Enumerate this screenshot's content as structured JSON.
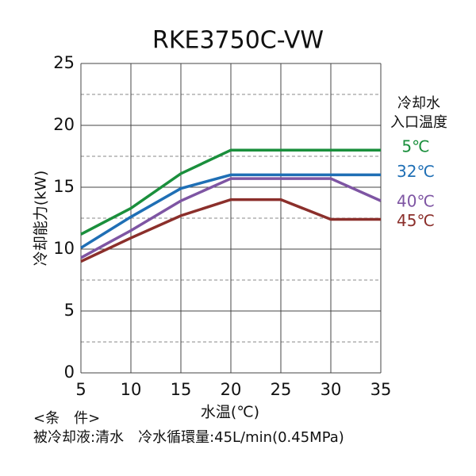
{
  "chart_data": {
    "type": "line",
    "title": "RKE3750C-VW",
    "x": [
      5,
      10,
      15,
      20,
      25,
      30,
      35
    ],
    "xlim": [
      5,
      35
    ],
    "xticks": [
      5,
      10,
      15,
      20,
      25,
      30,
      35
    ],
    "ylim": [
      0,
      25
    ],
    "yticks": [
      0,
      5,
      10,
      15,
      20,
      25
    ],
    "minor_yticks": [
      2.5,
      7.5,
      12.5,
      17.5,
      22.5
    ],
    "grid": true,
    "xlabel": "水温(℃)",
    "ylabel": "冷却能力(kW)",
    "legend_title": [
      "冷却水",
      "入口温度"
    ],
    "series": [
      {
        "name": "5℃",
        "color": "#1a8f3c",
        "values": [
          11.2,
          13.3,
          16.1,
          18,
          18,
          18,
          18
        ]
      },
      {
        "name": "32℃",
        "color": "#1f6fb5",
        "values": [
          10.1,
          12.6,
          14.9,
          16,
          16,
          16,
          16
        ]
      },
      {
        "name": "40℃",
        "color": "#7e55a3",
        "values": [
          9.3,
          11.5,
          13.9,
          15.7,
          15.7,
          15.7,
          13.9
        ]
      },
      {
        "name": "45℃",
        "color": "#8b2f2b",
        "values": [
          9.0,
          10.9,
          12.7,
          14.0,
          14.0,
          12.4,
          12.4
        ]
      }
    ],
    "notes": [
      "<条　件>",
      "被冷却液:清水　冷水循環量:45L/min(0.45MPa)"
    ]
  }
}
